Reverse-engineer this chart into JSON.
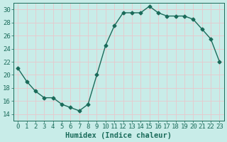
{
  "x": [
    0,
    1,
    2,
    3,
    4,
    5,
    6,
    7,
    8,
    9,
    10,
    11,
    12,
    13,
    14,
    15,
    16,
    17,
    18,
    19,
    20,
    21,
    22,
    23
  ],
  "y": [
    21,
    19,
    17.5,
    16.5,
    16.5,
    15.5,
    15,
    14.5,
    15.5,
    20,
    24.5,
    27.5,
    29.5,
    29.5,
    29.5,
    30.5,
    29.5,
    29,
    29,
    29,
    28.5,
    27,
    25.5,
    22
  ],
  "line_color": "#1a6b5a",
  "bg_color": "#c8ece8",
  "grid_color": "#e8c8cc",
  "xlabel": "Humidex (Indice chaleur)",
  "ylim": [
    13,
    31
  ],
  "xlim": [
    -0.5,
    23.5
  ],
  "yticks": [
    14,
    16,
    18,
    20,
    22,
    24,
    26,
    28,
    30
  ],
  "xticks": [
    0,
    1,
    2,
    3,
    4,
    5,
    6,
    7,
    8,
    9,
    10,
    11,
    12,
    13,
    14,
    15,
    16,
    17,
    18,
    19,
    20,
    21,
    22,
    23
  ],
  "marker": "D",
  "marker_size": 2.5,
  "line_width": 1.0,
  "xlabel_fontsize": 7.5,
  "tick_fontsize": 6.5
}
